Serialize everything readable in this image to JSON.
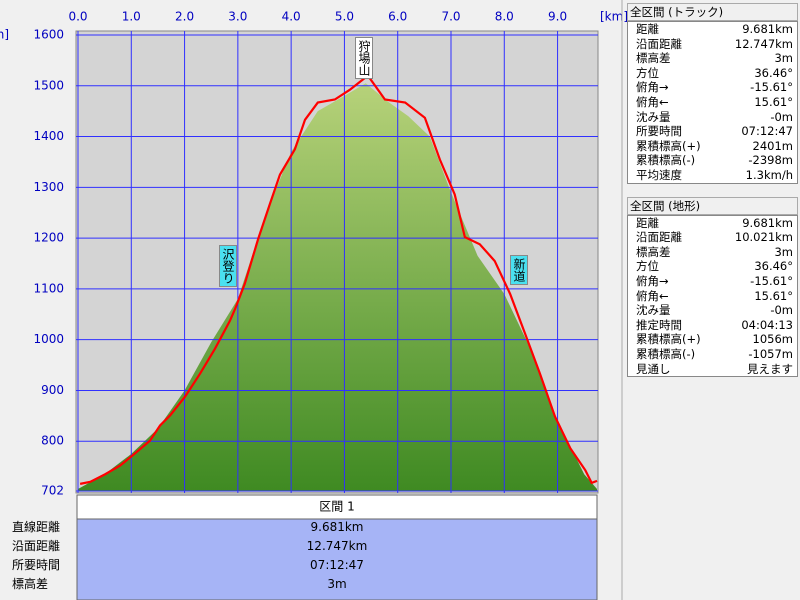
{
  "chart_data": {
    "type": "line",
    "x_unit": "[km]",
    "y_unit": "[m]",
    "xlim": [
      0,
      9.74
    ],
    "ylim": [
      702,
      1600
    ],
    "xticks": [
      {
        "value": 0,
        "label": "0.0"
      },
      {
        "value": 1,
        "label": "1.0"
      },
      {
        "value": 2,
        "label": "2.0"
      },
      {
        "value": 3,
        "label": "3.0"
      },
      {
        "value": 4,
        "label": "4.0"
      },
      {
        "value": 5,
        "label": "5.0"
      },
      {
        "value": 6,
        "label": "6.0"
      },
      {
        "value": 7,
        "label": "7.0"
      },
      {
        "value": 8,
        "label": "8.0"
      },
      {
        "value": 9,
        "label": "9.0"
      }
    ],
    "yticks": [
      702,
      800,
      900,
      1000,
      1100,
      1200,
      1300,
      1400,
      1500,
      1600
    ],
    "grid": true,
    "series": [
      {
        "color": "#5f9a2e",
        "fill": true,
        "x": [
          0,
          0.5,
          1.0,
          1.5,
          2.0,
          2.5,
          3.0,
          3.5,
          4.0,
          4.5,
          5.0,
          5.4,
          5.8,
          6.2,
          6.6,
          7.0,
          7.5,
          8.0,
          8.5,
          9.0,
          9.5,
          9.74
        ],
        "values": [
          706,
          735,
          775,
          825,
          900,
          995,
          1080,
          1240,
          1370,
          1450,
          1480,
          1505,
          1470,
          1440,
          1400,
          1290,
          1165,
          1090,
          980,
          840,
          735,
          706
        ]
      },
      {
        "color": "#ff0000",
        "fill": false,
        "x": [
          0.04,
          0.23,
          0.51,
          0.79,
          1.07,
          1.35,
          1.54,
          1.73,
          2.01,
          2.29,
          2.57,
          2.85,
          2.95,
          3.13,
          3.38,
          3.6,
          3.79,
          4.07,
          4.26,
          4.5,
          4.82,
          5.1,
          5.44,
          5.76,
          6.14,
          6.51,
          6.79,
          7.07,
          7.26,
          7.54,
          7.82,
          8.11,
          8.39,
          8.67,
          8.95,
          9.24,
          9.52,
          9.64,
          9.74
        ],
        "values": [
          716,
          720,
          735,
          752,
          776,
          801,
          831,
          851,
          888,
          933,
          982,
          1037,
          1061,
          1110,
          1198,
          1267,
          1325,
          1375,
          1433,
          1467,
          1473,
          1492,
          1520,
          1473,
          1467,
          1437,
          1355,
          1286,
          1202,
          1188,
          1155,
          1090,
          1012,
          933,
          849,
          786,
          743,
          718,
          722
        ]
      }
    ],
    "annotations": [
      "狩場山",
      "沢登り",
      "新道"
    ]
  },
  "section": {
    "header": "区間 1",
    "rows": [
      [
        "直線距離",
        "9.681km"
      ],
      [
        "沿面距離",
        "12.747km"
      ],
      [
        "所要時間",
        "07:12:47"
      ],
      [
        "標高差",
        "3m"
      ]
    ]
  },
  "panels": [
    {
      "title": "全区間 (トラック)",
      "rows": [
        [
          "距離",
          "9.681km"
        ],
        [
          "沿面距離",
          "12.747km"
        ],
        [
          "標高差",
          "3m"
        ],
        [
          "方位",
          "36.46°"
        ],
        [
          "俯角→",
          "-15.61°"
        ],
        [
          "俯角←",
          "15.61°"
        ],
        [
          "沈み量",
          "-0m"
        ],
        [
          "所要時間",
          "07:12:47"
        ],
        [
          "累積標高(+)",
          "2401m"
        ],
        [
          "累積標高(-)",
          "-2398m"
        ],
        [
          "平均速度",
          "1.3km/h"
        ]
      ]
    },
    {
      "title": "全区間 (地形)",
      "rows": [
        [
          "距離",
          "9.681km"
        ],
        [
          "沿面距離",
          "10.021km"
        ],
        [
          "標高差",
          "3m"
        ],
        [
          "方位",
          "36.46°"
        ],
        [
          "俯角→",
          "-15.61°"
        ],
        [
          "俯角←",
          "15.61°"
        ],
        [
          "沈み量",
          "-0m"
        ],
        [
          "推定時間",
          "04:04:13"
        ],
        [
          "累積標高(+)",
          "1056m"
        ],
        [
          "累積標高(-)",
          "-1057m"
        ],
        [
          "見通し",
          "見えます"
        ]
      ]
    }
  ]
}
